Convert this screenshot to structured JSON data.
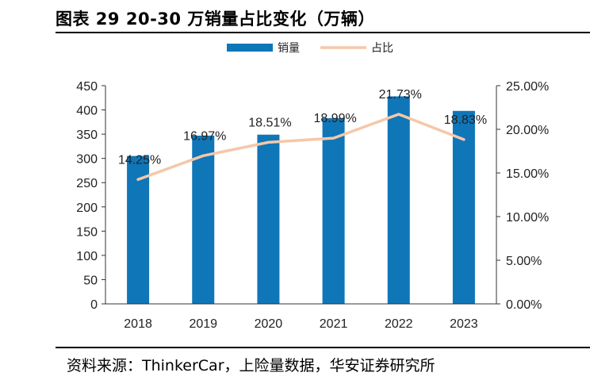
{
  "title": "图表 29 20-30 万销量占比变化（万辆）",
  "source": "资料来源：ThinkerCar，上险量数据，华安证券研究所",
  "colors": {
    "bar": "#0F76B8",
    "line": "#F5C7A9"
  },
  "chart_data": {
    "type": "bar+line",
    "categories": [
      "2018",
      "2019",
      "2020",
      "2021",
      "2022",
      "2023"
    ],
    "series": [
      {
        "name": "销量",
        "type": "bar",
        "axis": "left",
        "values": [
          305,
          347,
          349,
          383,
          428,
          398
        ]
      },
      {
        "name": "占比",
        "type": "line",
        "axis": "right",
        "values": [
          14.25,
          16.97,
          18.51,
          18.99,
          21.73,
          18.83
        ],
        "labels": [
          "14.25%",
          "16.97%",
          "18.51%",
          "18.99%",
          "21.73%",
          "18.83%"
        ]
      }
    ],
    "y_left": {
      "range": [
        0,
        450
      ],
      "ticks": [
        "0",
        "50",
        "100",
        "150",
        "200",
        "250",
        "300",
        "350",
        "400",
        "450"
      ]
    },
    "y_right": {
      "range": [
        0,
        25
      ],
      "ticks": [
        "0.00%",
        "5.00%",
        "10.00%",
        "15.00%",
        "20.00%",
        "25.00%"
      ]
    },
    "legend": "top-center",
    "grid": false
  }
}
